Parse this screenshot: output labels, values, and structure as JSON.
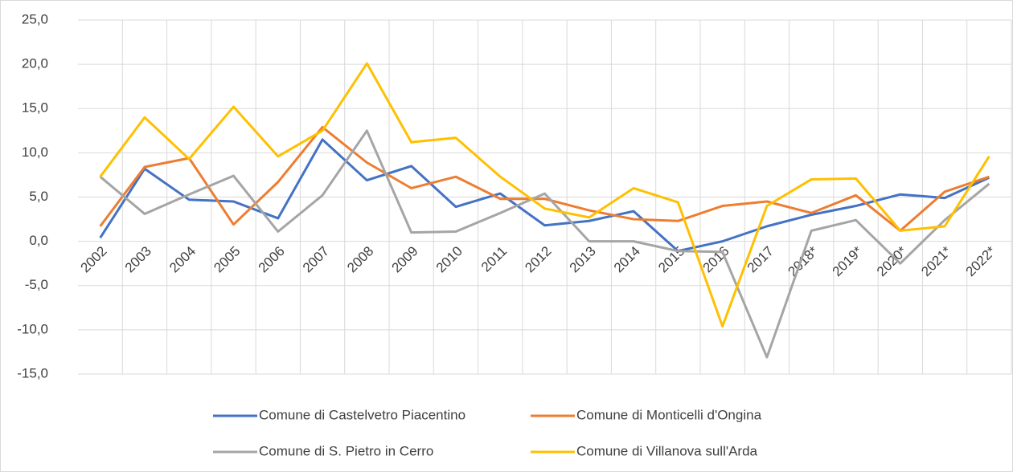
{
  "chart_data": {
    "type": "line",
    "categories": [
      "2002",
      "2003",
      "2004",
      "2005",
      "2006",
      "2007",
      "2008",
      "2009",
      "2010",
      "2011",
      "2012",
      "2013",
      "2014",
      "2015",
      "2016",
      "2017",
      "2018*",
      "2019*",
      "2020*",
      "2021*",
      "2022*"
    ],
    "series": [
      {
        "name": "Comune di Castelvetro Piacentino",
        "color": "#4472c4",
        "values": [
          0.4,
          8.2,
          4.7,
          4.5,
          2.6,
          11.5,
          6.9,
          8.5,
          3.9,
          5.4,
          1.8,
          2.3,
          3.4,
          -1.1,
          0.0,
          1.7,
          3.0,
          4.0,
          5.3,
          4.9,
          7.2
        ]
      },
      {
        "name": "Comune di Monticelli d'Ongina",
        "color": "#ed7d31",
        "values": [
          1.7,
          8.4,
          9.4,
          1.9,
          6.7,
          12.9,
          8.9,
          6.0,
          7.3,
          4.8,
          4.8,
          3.5,
          2.5,
          2.3,
          4.0,
          4.5,
          3.2,
          5.2,
          1.2,
          5.6,
          7.3
        ]
      },
      {
        "name": "Comune di S. Pietro in Cerro",
        "color": "#a5a5a5",
        "values": [
          7.3,
          3.1,
          5.3,
          7.4,
          1.1,
          5.2,
          12.5,
          1.0,
          1.1,
          3.2,
          5.4,
          0.0,
          0.0,
          -1.1,
          -1.2,
          -13.1,
          1.2,
          2.4,
          -2.5,
          2.4,
          6.5
        ]
      },
      {
        "name": "Comune di Villanova sull'Arda",
        "color": "#ffc000",
        "values": [
          7.3,
          14.0,
          9.3,
          15.2,
          9.6,
          12.5,
          20.1,
          11.2,
          11.7,
          7.3,
          3.7,
          2.7,
          6.0,
          4.4,
          -9.6,
          4.0,
          7.0,
          7.1,
          1.2,
          1.7,
          9.6
        ]
      }
    ],
    "ylim": [
      -15,
      25
    ],
    "yticks": [
      {
        "value": -15,
        "label": "-15,0"
      },
      {
        "value": -10,
        "label": "-10,0"
      },
      {
        "value": -5,
        "label": "-5,0"
      },
      {
        "value": 0,
        "label": "0,0"
      },
      {
        "value": 5,
        "label": "5,0"
      },
      {
        "value": 10,
        "label": "10,0"
      },
      {
        "value": 15,
        "label": "15,0"
      },
      {
        "value": 20,
        "label": "20,0"
      },
      {
        "value": 25,
        "label": "25,0"
      }
    ],
    "grid": true,
    "xgrid": true,
    "legend": "bottom"
  }
}
